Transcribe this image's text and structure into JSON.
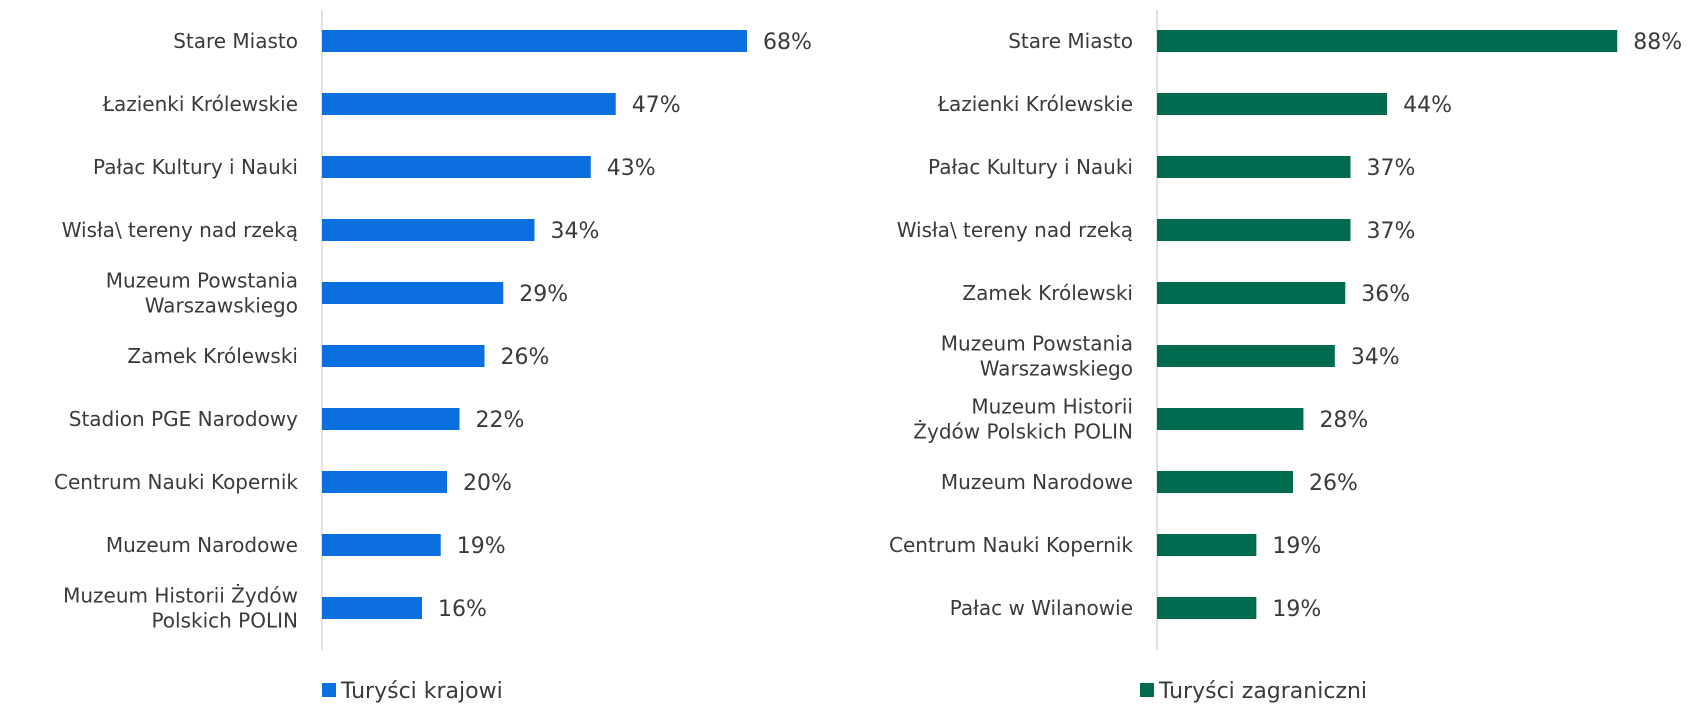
{
  "chart_data": [
    {
      "type": "bar",
      "orientation": "horizontal",
      "title": "",
      "xlim": [
        0,
        100
      ],
      "value_suffix": "%",
      "color": "#0b6fe0",
      "legend": "Turyści krajowi",
      "legend_position": "bottom",
      "categories": [
        [
          "Stare Miasto"
        ],
        [
          "Łazienki Królewskie"
        ],
        [
          "Pałac Kultury i Nauki"
        ],
        [
          "Wisła\\ tereny nad rzeką"
        ],
        [
          "Muzeum Powstania",
          "Warszawskiego"
        ],
        [
          "Zamek Królewski"
        ],
        [
          "Stadion PGE Narodowy"
        ],
        [
          "Centrum Nauki Kopernik"
        ],
        [
          "Muzeum Narodowe"
        ],
        [
          "Muzeum Historii Żydów",
          "Polskich POLIN"
        ]
      ],
      "values": [
        68,
        47,
        43,
        34,
        29,
        26,
        22,
        20,
        19,
        16
      ]
    },
    {
      "type": "bar",
      "orientation": "horizontal",
      "title": "",
      "xlim": [
        0,
        100
      ],
      "value_suffix": "%",
      "color": "#006b4e",
      "legend": "Turyści zagraniczni",
      "legend_position": "bottom",
      "categories": [
        [
          "Stare Miasto"
        ],
        [
          "Łazienki Królewskie"
        ],
        [
          "Pałac Kultury i Nauki"
        ],
        [
          "Wisła\\ tereny nad rzeką"
        ],
        [
          "Zamek Królewski"
        ],
        [
          "Muzeum Powstania",
          "Warszawskiego"
        ],
        [
          "Muzeum Historii",
          "Żydów Polskich POLIN"
        ],
        [
          "Muzeum Narodowe"
        ],
        [
          "Centrum Nauki Kopernik"
        ],
        [
          "Pałac w Wilanowie"
        ]
      ],
      "values": [
        88,
        44,
        37,
        37,
        36,
        34,
        28,
        26,
        19,
        19
      ]
    }
  ]
}
